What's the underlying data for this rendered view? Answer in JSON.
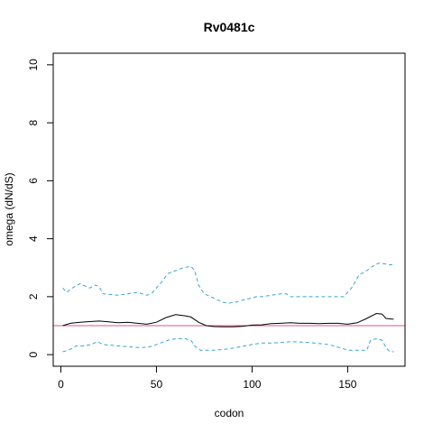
{
  "chart_data": {
    "type": "line",
    "title": "Rv0481c",
    "xlabel": "codon",
    "ylabel": "omega (dN/dS)",
    "xlim": [
      -4,
      180
    ],
    "ylim": [
      -0.4,
      10.4
    ],
    "xticks": [
      0,
      50,
      100,
      150
    ],
    "yticks": [
      0,
      2,
      4,
      6,
      8,
      10
    ],
    "grid": false,
    "legend": "none",
    "reference_line": {
      "y": 1,
      "color": "#e0508c"
    },
    "series": [
      {
        "role": "upper",
        "style": "dashed",
        "color": "#3aa4d8",
        "x": [
          1,
          3,
          6,
          10,
          15,
          18,
          20,
          22,
          30,
          40,
          45,
          48,
          52,
          56,
          60,
          64,
          68,
          70,
          72,
          75,
          80,
          85,
          88,
          92,
          96,
          100,
          102,
          105,
          110,
          115,
          118,
          120,
          130,
          140,
          148,
          152,
          156,
          160,
          163,
          166,
          168,
          172,
          174
        ],
        "y": [
          2.3,
          2.15,
          2.3,
          2.45,
          2.3,
          2.4,
          2.35,
          2.1,
          2.05,
          2.15,
          2.05,
          2.15,
          2.45,
          2.8,
          2.9,
          3.0,
          3.05,
          2.9,
          2.4,
          2.1,
          1.95,
          1.8,
          1.78,
          1.82,
          1.9,
          1.95,
          2.0,
          2.0,
          2.05,
          2.1,
          2.1,
          2.0,
          2.0,
          2.0,
          2.0,
          2.3,
          2.75,
          2.9,
          3.05,
          3.15,
          3.15,
          3.1,
          3.1
        ]
      },
      {
        "role": "estimate",
        "style": "solid",
        "color": "#000000",
        "x": [
          1,
          5,
          10,
          15,
          20,
          25,
          30,
          35,
          40,
          45,
          50,
          55,
          60,
          65,
          68,
          72,
          76,
          80,
          85,
          90,
          95,
          100,
          105,
          110,
          115,
          120,
          125,
          130,
          135,
          140,
          145,
          150,
          155,
          160,
          165,
          168,
          170,
          174
        ],
        "y": [
          1.0,
          1.08,
          1.12,
          1.14,
          1.16,
          1.13,
          1.1,
          1.12,
          1.08,
          1.05,
          1.12,
          1.28,
          1.38,
          1.34,
          1.3,
          1.12,
          1.0,
          0.97,
          0.96,
          0.96,
          0.98,
          1.02,
          1.03,
          1.07,
          1.08,
          1.1,
          1.08,
          1.08,
          1.07,
          1.08,
          1.08,
          1.05,
          1.1,
          1.25,
          1.42,
          1.4,
          1.25,
          1.22
        ]
      },
      {
        "role": "lower",
        "style": "dashed",
        "color": "#3aa4d8",
        "x": [
          1,
          4,
          8,
          12,
          16,
          19,
          22,
          30,
          40,
          45,
          48,
          52,
          56,
          60,
          65,
          68,
          70,
          73,
          76,
          80,
          88,
          92,
          96,
          100,
          105,
          110,
          115,
          120,
          130,
          140,
          148,
          150,
          152,
          157,
          160,
          162,
          165,
          168,
          170,
          172,
          174
        ],
        "y": [
          0.1,
          0.15,
          0.3,
          0.3,
          0.35,
          0.45,
          0.35,
          0.3,
          0.25,
          0.25,
          0.3,
          0.4,
          0.5,
          0.55,
          0.55,
          0.5,
          0.3,
          0.15,
          0.15,
          0.15,
          0.2,
          0.25,
          0.3,
          0.35,
          0.4,
          0.4,
          0.42,
          0.45,
          0.42,
          0.35,
          0.2,
          0.15,
          0.15,
          0.15,
          0.15,
          0.5,
          0.55,
          0.5,
          0.25,
          0.1,
          0.1
        ]
      }
    ]
  }
}
